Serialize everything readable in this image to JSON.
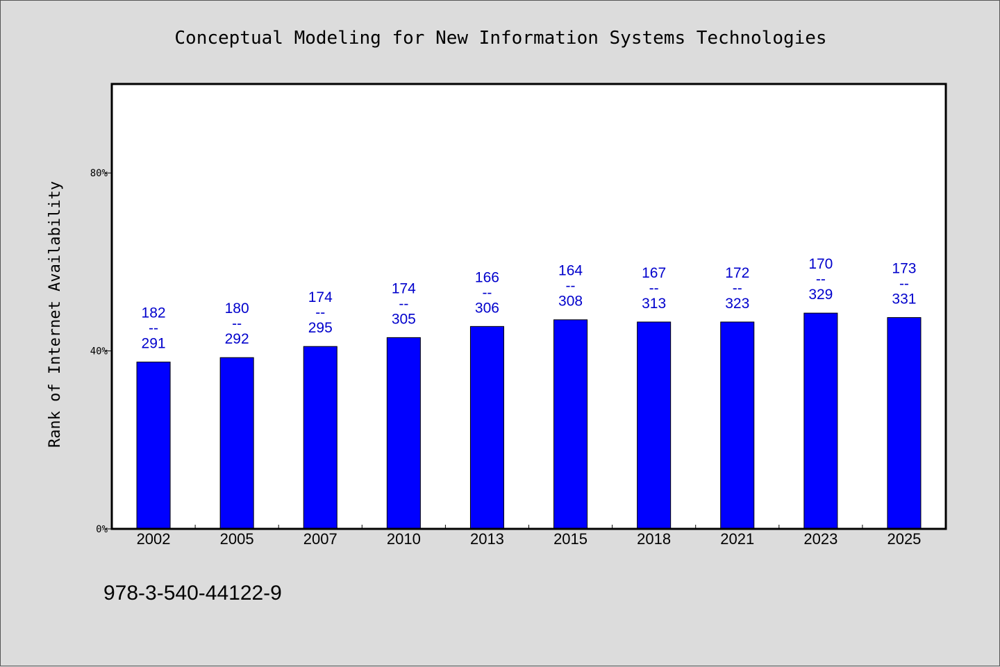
{
  "footer": "978-3-540-44122-9",
  "colors": {
    "bar": "#0000ff",
    "label": "#0000cc",
    "background": "#dcdcdc",
    "plot": "#ffffff"
  },
  "chart_data": {
    "type": "bar",
    "title": "Conceptual Modeling for New Information Systems Technologies",
    "xlabel": "",
    "ylabel": "Rank of Internet Availability",
    "ylim": [
      0,
      100
    ],
    "yticks": [
      {
        "value": 0,
        "label": "0%"
      },
      {
        "value": 40,
        "label": "40%"
      },
      {
        "value": 80,
        "label": "80%"
      }
    ],
    "categories": [
      "2002",
      "2005",
      "2007",
      "2010",
      "2013",
      "2015",
      "2018",
      "2021",
      "2023",
      "2025"
    ],
    "values": [
      37.5,
      38.5,
      41,
      43,
      45.5,
      47,
      46.5,
      46.5,
      48.5,
      47.5
    ],
    "data_labels": [
      {
        "top": "182",
        "sep": "--",
        "bottom": "291"
      },
      {
        "top": "180",
        "sep": "--",
        "bottom": "292"
      },
      {
        "top": "174",
        "sep": "--",
        "bottom": "295"
      },
      {
        "top": "174",
        "sep": "--",
        "bottom": "305"
      },
      {
        "top": "166",
        "sep": "--",
        "bottom": "306"
      },
      {
        "top": "164",
        "sep": "--",
        "bottom": "308"
      },
      {
        "top": "167",
        "sep": "--",
        "bottom": "313"
      },
      {
        "top": "172",
        "sep": "--",
        "bottom": "323"
      },
      {
        "top": "170",
        "sep": "--",
        "bottom": "329"
      },
      {
        "top": "173",
        "sep": "--",
        "bottom": "331"
      }
    ],
    "grid": false,
    "legend": "none"
  }
}
